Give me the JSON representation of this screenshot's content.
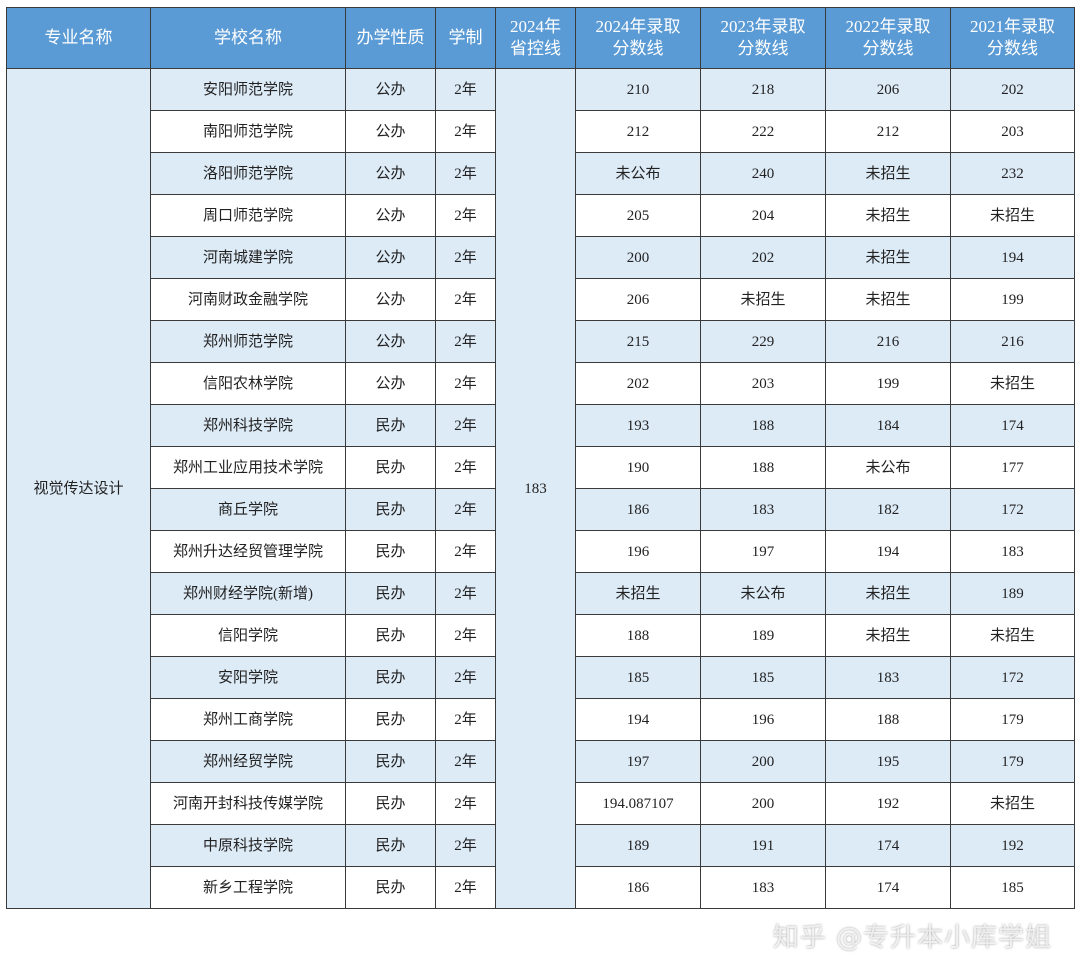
{
  "headers": [
    "专业名称",
    "学校名称",
    "办学性质",
    "学制",
    "2024年\n省控线",
    "2024年录取\n分数线",
    "2023年录取\n分数线",
    "2022年录取\n分数线",
    "2021年录取\n分数线"
  ],
  "major": "视觉传达设计",
  "control_line_2024": "183",
  "rows": [
    {
      "school": "安阳师范学院",
      "type": "公办",
      "years": "2年",
      "s2024": "210",
      "s2023": "218",
      "s2022": "206",
      "s2021": "202"
    },
    {
      "school": "南阳师范学院",
      "type": "公办",
      "years": "2年",
      "s2024": "212",
      "s2023": "222",
      "s2022": "212",
      "s2021": "203"
    },
    {
      "school": "洛阳师范学院",
      "type": "公办",
      "years": "2年",
      "s2024": "未公布",
      "s2023": "240",
      "s2022": "未招生",
      "s2021": "232"
    },
    {
      "school": "周口师范学院",
      "type": "公办",
      "years": "2年",
      "s2024": "205",
      "s2023": "204",
      "s2022": "未招生",
      "s2021": "未招生"
    },
    {
      "school": "河南城建学院",
      "type": "公办",
      "years": "2年",
      "s2024": "200",
      "s2023": "202",
      "s2022": "未招生",
      "s2021": "194"
    },
    {
      "school": "河南财政金融学院",
      "type": "公办",
      "years": "2年",
      "s2024": "206",
      "s2023": "未招生",
      "s2022": "未招生",
      "s2021": "199"
    },
    {
      "school": "郑州师范学院",
      "type": "公办",
      "years": "2年",
      "s2024": "215",
      "s2023": "229",
      "s2022": "216",
      "s2021": "216"
    },
    {
      "school": "信阳农林学院",
      "type": "公办",
      "years": "2年",
      "s2024": "202",
      "s2023": "203",
      "s2022": "199",
      "s2021": "未招生"
    },
    {
      "school": "郑州科技学院",
      "type": "民办",
      "years": "2年",
      "s2024": "193",
      "s2023": "188",
      "s2022": "184",
      "s2021": "174"
    },
    {
      "school": "郑州工业应用技术学院",
      "type": "民办",
      "years": "2年",
      "s2024": "190",
      "s2023": "188",
      "s2022": "未公布",
      "s2021": "177"
    },
    {
      "school": "商丘学院",
      "type": "民办",
      "years": "2年",
      "s2024": "186",
      "s2023": "183",
      "s2022": "182",
      "s2021": "172"
    },
    {
      "school": "郑州升达经贸管理学院",
      "type": "民办",
      "years": "2年",
      "s2024": "196",
      "s2023": "197",
      "s2022": "194",
      "s2021": "183"
    },
    {
      "school": "郑州财经学院(新增)",
      "type": "民办",
      "years": "2年",
      "s2024": "未招生",
      "s2023": "未公布",
      "s2022": "未招生",
      "s2021": "189"
    },
    {
      "school": "信阳学院",
      "type": "民办",
      "years": "2年",
      "s2024": "188",
      "s2023": "189",
      "s2022": "未招生",
      "s2021": "未招生"
    },
    {
      "school": "安阳学院",
      "type": "民办",
      "years": "2年",
      "s2024": "185",
      "s2023": "185",
      "s2022": "183",
      "s2021": "172"
    },
    {
      "school": "郑州工商学院",
      "type": "民办",
      "years": "2年",
      "s2024": "194",
      "s2023": "196",
      "s2022": "188",
      "s2021": "179"
    },
    {
      "school": "郑州经贸学院",
      "type": "民办",
      "years": "2年",
      "s2024": "197",
      "s2023": "200",
      "s2022": "195",
      "s2021": "179"
    },
    {
      "school": "河南开封科技传媒学院",
      "type": "民办",
      "years": "2年",
      "s2024": "194.087107",
      "s2023": "200",
      "s2022": "192",
      "s2021": "未招生"
    },
    {
      "school": "中原科技学院",
      "type": "民办",
      "years": "2年",
      "s2024": "189",
      "s2023": "191",
      "s2022": "174",
      "s2021": "192"
    },
    {
      "school": "新乡工程学院",
      "type": "民办",
      "years": "2年",
      "s2024": "186",
      "s2023": "183",
      "s2022": "174",
      "s2021": "185"
    }
  ],
  "watermark": "知乎 @专升本小库学姐",
  "colors": {
    "header_bg": "#5b9bd5",
    "alt_row_bg": "#ddebf7"
  }
}
